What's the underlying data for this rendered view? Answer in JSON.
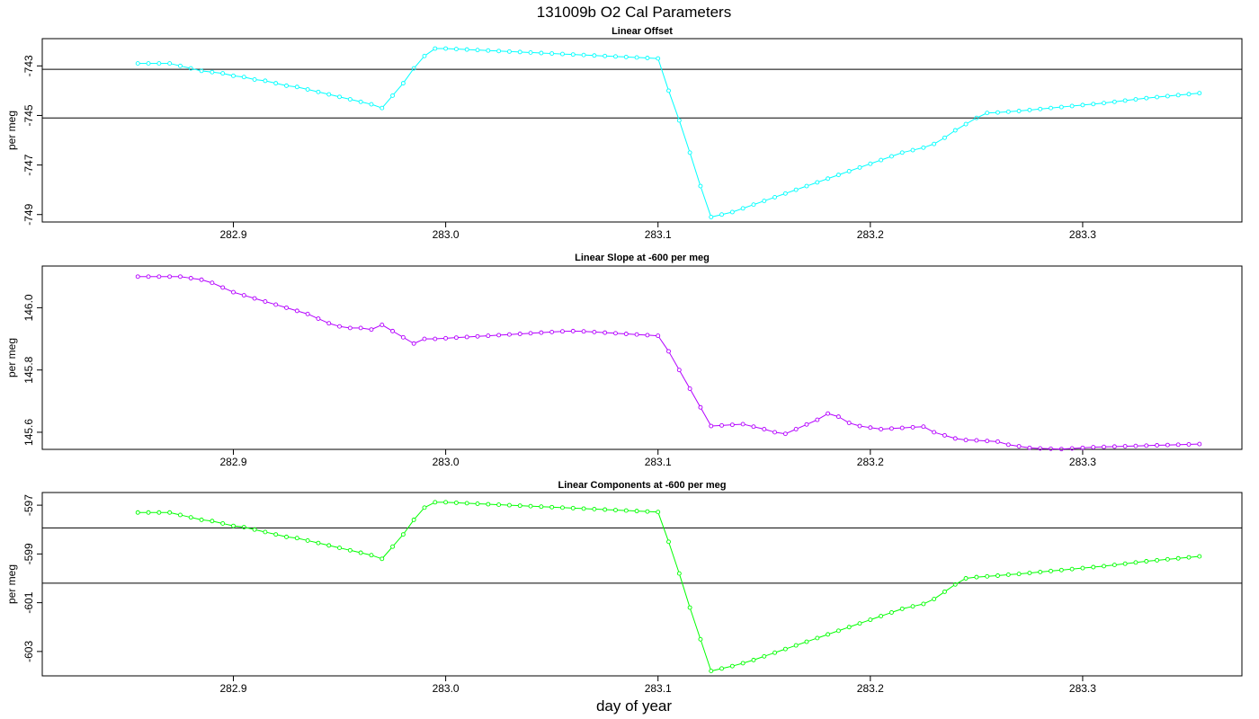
{
  "page": {
    "title": "131009b   O2 Cal Parameters",
    "xlabel": "day of year"
  },
  "chart_data": [
    {
      "type": "line",
      "title": "Linear Offset",
      "xlabel": "day of year",
      "ylabel": "per meg",
      "color": "#00ffff",
      "xlim": [
        282.81,
        283.375
      ],
      "ylim": [
        -749.3,
        -741.9
      ],
      "xticks": [
        "282.9",
        "283.0",
        "283.1",
        "283.2",
        "283.3"
      ],
      "yticks": [
        "-743",
        "-745",
        "-747",
        "-749"
      ],
      "hlines": [
        -743.14,
        -745.1
      ],
      "series": [
        {
          "name": "Linear Offset",
          "x": [
            282.855,
            282.86,
            282.865,
            282.87,
            282.875,
            282.88,
            282.885,
            282.89,
            282.895,
            282.9,
            282.905,
            282.91,
            282.915,
            282.92,
            282.925,
            282.93,
            282.935,
            282.94,
            282.945,
            282.95,
            282.955,
            282.96,
            282.965,
            282.97,
            282.975,
            282.98,
            282.985,
            282.99,
            282.995,
            283.0,
            283.005,
            283.01,
            283.015,
            283.02,
            283.025,
            283.03,
            283.035,
            283.04,
            283.045,
            283.05,
            283.055,
            283.06,
            283.065,
            283.07,
            283.075,
            283.08,
            283.085,
            283.09,
            283.095,
            283.1,
            283.105,
            283.11,
            283.115,
            283.12,
            283.125,
            283.13,
            283.135,
            283.14,
            283.145,
            283.15,
            283.155,
            283.16,
            283.165,
            283.17,
            283.175,
            283.18,
            283.185,
            283.19,
            283.195,
            283.2,
            283.205,
            283.21,
            283.215,
            283.22,
            283.225,
            283.23,
            283.235,
            283.24,
            283.245,
            283.25,
            283.255,
            283.26,
            283.265,
            283.27,
            283.275,
            283.28,
            283.285,
            283.29,
            283.295,
            283.3,
            283.305,
            283.31,
            283.315,
            283.32,
            283.325,
            283.33,
            283.335,
            283.34,
            283.345,
            283.35,
            283.355
          ],
          "values": [
            -742.9,
            -742.9,
            -742.9,
            -742.9,
            -743.0,
            -743.1,
            -743.2,
            -743.25,
            -743.3,
            -743.4,
            -743.45,
            -743.55,
            -743.6,
            -743.7,
            -743.8,
            -743.85,
            -743.95,
            -744.05,
            -744.15,
            -744.25,
            -744.35,
            -744.45,
            -744.55,
            -744.7,
            -744.2,
            -743.7,
            -743.1,
            -742.6,
            -742.3,
            -742.3,
            -742.32,
            -742.34,
            -742.36,
            -742.38,
            -742.4,
            -742.42,
            -742.44,
            -742.46,
            -742.48,
            -742.5,
            -742.52,
            -742.54,
            -742.56,
            -742.58,
            -742.6,
            -742.62,
            -742.64,
            -742.66,
            -742.68,
            -742.7,
            -744.0,
            -745.2,
            -746.5,
            -747.85,
            -749.1,
            -749.0,
            -748.9,
            -748.75,
            -748.6,
            -748.45,
            -748.3,
            -748.15,
            -748.0,
            -747.85,
            -747.7,
            -747.55,
            -747.4,
            -747.25,
            -747.1,
            -746.95,
            -746.8,
            -746.65,
            -746.5,
            -746.4,
            -746.3,
            -746.15,
            -745.9,
            -745.6,
            -745.35,
            -745.1,
            -744.9,
            -744.88,
            -744.85,
            -744.82,
            -744.78,
            -744.74,
            -744.7,
            -744.66,
            -744.62,
            -744.58,
            -744.54,
            -744.5,
            -744.45,
            -744.4,
            -744.35,
            -744.3,
            -744.26,
            -744.22,
            -744.18,
            -744.14,
            -744.1
          ]
        }
      ]
    },
    {
      "type": "line",
      "title": "Linear Slope at -600 per meg",
      "xlabel": "day of year",
      "ylabel": "per meg",
      "color": "#b400ff",
      "xlim": [
        282.81,
        283.375
      ],
      "ylim": [
        145.545,
        146.134
      ],
      "xticks": [
        "282.9",
        "283.0",
        "283.1",
        "283.2",
        "283.3"
      ],
      "yticks": [
        "146.0",
        "145.8",
        "145.6"
      ],
      "hlines": [],
      "series": [
        {
          "name": "Linear Slope",
          "x": [
            282.855,
            282.86,
            282.865,
            282.87,
            282.875,
            282.88,
            282.885,
            282.89,
            282.895,
            282.9,
            282.905,
            282.91,
            282.915,
            282.92,
            282.925,
            282.93,
            282.935,
            282.94,
            282.945,
            282.95,
            282.955,
            282.96,
            282.965,
            282.97,
            282.975,
            282.98,
            282.985,
            282.99,
            282.995,
            283.0,
            283.005,
            283.01,
            283.015,
            283.02,
            283.025,
            283.03,
            283.035,
            283.04,
            283.045,
            283.05,
            283.055,
            283.06,
            283.065,
            283.07,
            283.075,
            283.08,
            283.085,
            283.09,
            283.095,
            283.1,
            283.105,
            283.11,
            283.115,
            283.12,
            283.125,
            283.13,
            283.135,
            283.14,
            283.145,
            283.15,
            283.155,
            283.16,
            283.165,
            283.17,
            283.175,
            283.18,
            283.185,
            283.19,
            283.195,
            283.2,
            283.205,
            283.21,
            283.215,
            283.22,
            283.225,
            283.23,
            283.235,
            283.24,
            283.245,
            283.25,
            283.255,
            283.26,
            283.265,
            283.27,
            283.275,
            283.28,
            283.285,
            283.29,
            283.295,
            283.3,
            283.305,
            283.31,
            283.315,
            283.32,
            283.325,
            283.33,
            283.335,
            283.34,
            283.345,
            283.35,
            283.355
          ],
          "values": [
            146.1,
            146.1,
            146.1,
            146.1,
            146.1,
            146.095,
            146.09,
            146.08,
            146.065,
            146.05,
            146.04,
            146.03,
            146.02,
            146.01,
            146.0,
            145.99,
            145.98,
            145.965,
            145.95,
            145.94,
            145.935,
            145.935,
            145.93,
            145.945,
            145.925,
            145.905,
            145.885,
            145.9,
            145.9,
            145.902,
            145.904,
            145.906,
            145.908,
            145.91,
            145.912,
            145.914,
            145.916,
            145.918,
            145.92,
            145.922,
            145.924,
            145.925,
            145.924,
            145.922,
            145.92,
            145.918,
            145.916,
            145.914,
            145.912,
            145.91,
            145.86,
            145.8,
            145.74,
            145.68,
            145.62,
            145.622,
            145.624,
            145.626,
            145.618,
            145.61,
            145.6,
            145.595,
            145.61,
            145.625,
            145.64,
            145.66,
            145.65,
            145.63,
            145.62,
            145.615,
            145.61,
            145.612,
            145.614,
            145.616,
            145.618,
            145.6,
            145.59,
            145.58,
            145.575,
            145.574,
            145.572,
            145.57,
            145.56,
            145.555,
            145.55,
            145.548,
            145.547,
            145.546,
            145.548,
            145.55,
            145.552,
            145.553,
            145.554,
            145.555,
            145.556,
            145.557,
            145.558,
            145.559,
            145.56,
            145.561,
            145.562
          ]
        }
      ]
    },
    {
      "type": "line",
      "title": "Linear Components at -600 per meg",
      "xlabel": "day of year",
      "ylabel": "per meg",
      "color": "#00ff00",
      "xlim": [
        282.81,
        283.375
      ],
      "ylim": [
        -604.0,
        -596.48
      ],
      "xticks": [
        "282.9",
        "283.0",
        "283.1",
        "283.2",
        "283.3"
      ],
      "yticks": [
        "-597",
        "-599",
        "-601",
        "-603"
      ],
      "hlines": [
        -597.93,
        -600.2
      ],
      "series": [
        {
          "name": "Linear Components",
          "x": [
            282.855,
            282.86,
            282.865,
            282.87,
            282.875,
            282.88,
            282.885,
            282.89,
            282.895,
            282.9,
            282.905,
            282.91,
            282.915,
            282.92,
            282.925,
            282.93,
            282.935,
            282.94,
            282.945,
            282.95,
            282.955,
            282.96,
            282.965,
            282.97,
            282.975,
            282.98,
            282.985,
            282.99,
            282.995,
            283.0,
            283.005,
            283.01,
            283.015,
            283.02,
            283.025,
            283.03,
            283.035,
            283.04,
            283.045,
            283.05,
            283.055,
            283.06,
            283.065,
            283.07,
            283.075,
            283.08,
            283.085,
            283.09,
            283.095,
            283.1,
            283.105,
            283.11,
            283.115,
            283.12,
            283.125,
            283.13,
            283.135,
            283.14,
            283.145,
            283.15,
            283.155,
            283.16,
            283.165,
            283.17,
            283.175,
            283.18,
            283.185,
            283.19,
            283.195,
            283.2,
            283.205,
            283.21,
            283.215,
            283.22,
            283.225,
            283.23,
            283.235,
            283.24,
            283.245,
            283.25,
            283.255,
            283.26,
            283.265,
            283.27,
            283.275,
            283.28,
            283.285,
            283.29,
            283.295,
            283.3,
            283.305,
            283.31,
            283.315,
            283.32,
            283.325,
            283.33,
            283.335,
            283.34,
            283.345,
            283.35,
            283.355
          ],
          "values": [
            -597.3,
            -597.3,
            -597.3,
            -597.3,
            -597.4,
            -597.5,
            -597.6,
            -597.65,
            -597.75,
            -597.85,
            -597.9,
            -598.0,
            -598.1,
            -598.2,
            -598.3,
            -598.35,
            -598.45,
            -598.55,
            -598.65,
            -598.75,
            -598.85,
            -598.95,
            -599.05,
            -599.2,
            -598.7,
            -598.2,
            -597.6,
            -597.1,
            -596.88,
            -596.88,
            -596.9,
            -596.92,
            -596.94,
            -596.96,
            -596.98,
            -597.0,
            -597.02,
            -597.04,
            -597.06,
            -597.08,
            -597.1,
            -597.12,
            -597.14,
            -597.16,
            -597.18,
            -597.2,
            -597.22,
            -597.24,
            -597.26,
            -597.28,
            -598.5,
            -599.8,
            -601.2,
            -602.5,
            -603.8,
            -603.7,
            -603.6,
            -603.48,
            -603.35,
            -603.2,
            -603.05,
            -602.9,
            -602.75,
            -602.6,
            -602.45,
            -602.3,
            -602.15,
            -602.0,
            -601.85,
            -601.7,
            -601.55,
            -601.4,
            -601.25,
            -601.15,
            -601.05,
            -600.85,
            -600.55,
            -600.25,
            -600.0,
            -599.95,
            -599.92,
            -599.89,
            -599.85,
            -599.82,
            -599.78,
            -599.74,
            -599.7,
            -599.66,
            -599.62,
            -599.58,
            -599.54,
            -599.5,
            -599.45,
            -599.4,
            -599.35,
            -599.3,
            -599.26,
            -599.22,
            -599.18,
            -599.14,
            -599.1
          ]
        }
      ]
    }
  ]
}
